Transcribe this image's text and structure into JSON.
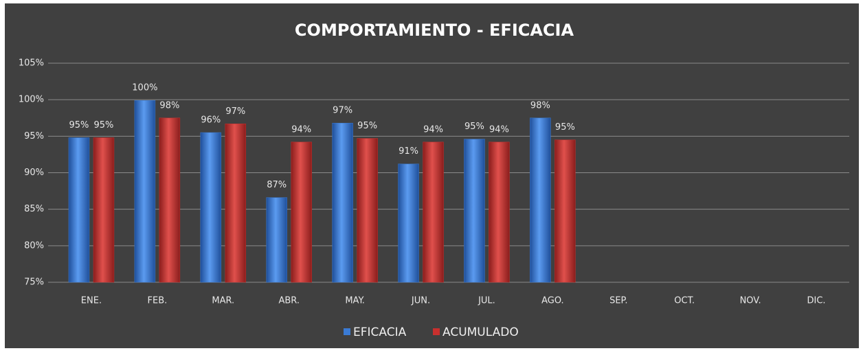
{
  "chart_data": {
    "type": "bar",
    "title": "COMPORTAMIENTO  - EFICACIA",
    "categories": [
      "ENE.",
      "FEB.",
      "MAR.",
      "ABR.",
      "MAY.",
      "JUN.",
      "JUL.",
      "AGO.",
      "SEP.",
      "OCT.",
      "NOV.",
      "DIC."
    ],
    "series": [
      {
        "name": "EFICACIA",
        "color": "#3a7bd5",
        "values": [
          94.8,
          99.9,
          95.5,
          86.6,
          96.8,
          91.2,
          94.6,
          97.5,
          null,
          null,
          null,
          null
        ],
        "value_labels": [
          "95%",
          "100%",
          "96%",
          "87%",
          "97%",
          "91%",
          "95%",
          "98%",
          null,
          null,
          null,
          null
        ]
      },
      {
        "name": "ACUMULADO",
        "color": "#c8302e",
        "values": [
          94.8,
          97.5,
          96.7,
          94.2,
          94.7,
          94.2,
          94.2,
          94.5,
          null,
          null,
          null,
          null
        ],
        "value_labels": [
          "95%",
          "98%",
          "97%",
          "94%",
          "95%",
          "94%",
          "94%",
          "95%",
          null,
          null,
          null,
          null
        ]
      }
    ],
    "ylim": [
      75,
      105
    ],
    "yticks": [
      {
        "value": 75,
        "label": "75%"
      },
      {
        "value": 80,
        "label": "80%"
      },
      {
        "value": 85,
        "label": "85%"
      },
      {
        "value": 90,
        "label": "90%"
      },
      {
        "value": 95,
        "label": "95%"
      },
      {
        "value": 100,
        "label": "100%"
      },
      {
        "value": 105,
        "label": "105%"
      }
    ],
    "grid": true,
    "legend": "bottom"
  }
}
